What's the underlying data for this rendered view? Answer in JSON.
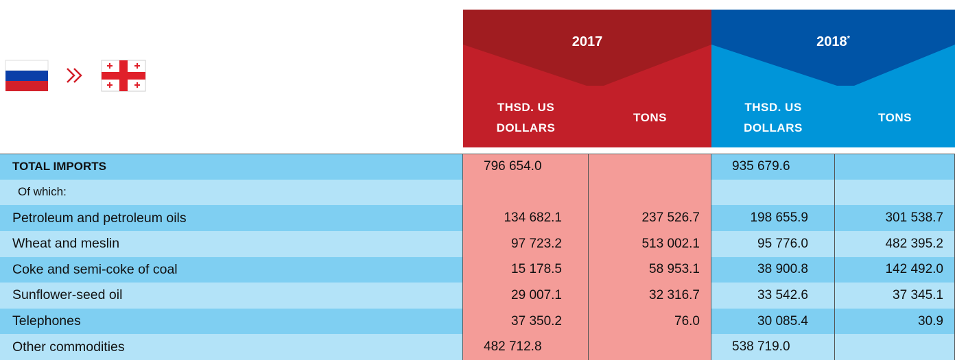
{
  "table": {
    "years": [
      {
        "year": "2017",
        "note_mark": null,
        "columns": [
          "THSD. US DOLLARS",
          "TONS"
        ]
      },
      {
        "year": "2018",
        "note_mark": "*",
        "columns": [
          "THSD. US DOLLARS",
          "TONS"
        ]
      }
    ],
    "rows": [
      {
        "label": "TOTAL IMPORTS",
        "values": [
          "796 654.0",
          null,
          "935 679.6",
          null
        ]
      },
      {
        "label": "Of which:",
        "values": [
          null,
          null,
          null,
          null
        ]
      },
      {
        "label": "Petroleum and petroleum oils",
        "values": [
          "134 682.1",
          "237 526.7",
          "198 655.9",
          "301 538.7"
        ]
      },
      {
        "label": "Wheat and meslin",
        "values": [
          "97 723.2",
          "513 002.1",
          "95 776.0",
          "482 395.2"
        ]
      },
      {
        "label": "Coke and semi-coke of coal",
        "values": [
          "15 178.5",
          "58 953.1",
          "38 900.8",
          "142 492.0"
        ]
      },
      {
        "label": "Sunflower-seed oil",
        "values": [
          "29 007.1",
          "32 316.7",
          "33 542.6",
          "37 345.1"
        ]
      },
      {
        "label": "Telephones",
        "values": [
          "37 350.2",
          "76.0",
          "30 085.4",
          "30.9"
        ]
      },
      {
        "label": "Other commodities",
        "values": [
          "482 712.8",
          null,
          "538 719.0",
          null
        ]
      }
    ]
  }
}
